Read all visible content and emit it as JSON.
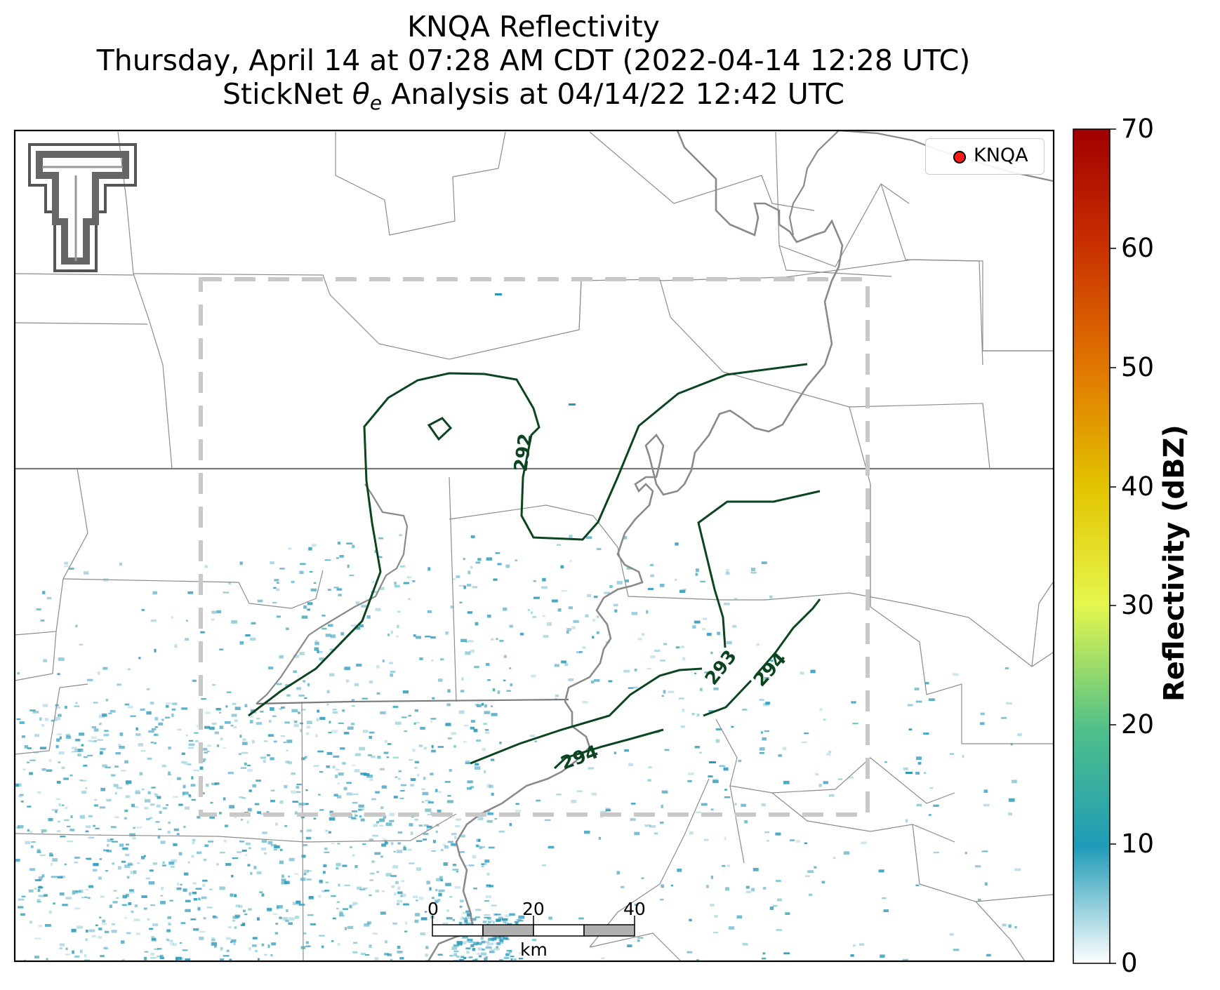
{
  "title": {
    "line1": "KNQA Reflectivity",
    "line2": "Thursday, April 14 at 07:28 AM CDT (2022-04-14 12:28 UTC)",
    "line3_prefix": "StickNet ",
    "line3_symbol": "θ",
    "line3_subscript": "e",
    "line3_suffix": " Analysis at 04/14/22 12:42 UTC"
  },
  "legend": {
    "label": "KNQA",
    "marker_color": "#ff1a1a"
  },
  "colorbar": {
    "label": "Reflectivity (dBZ)",
    "ticks": [
      "0",
      "10",
      "20",
      "30",
      "40",
      "50",
      "60",
      "70"
    ],
    "colors": [
      "#ffffff",
      "#1f9bb7",
      "#4fbf8a",
      "#e5f74d",
      "#e3c400",
      "#e07800",
      "#c83000",
      "#a00000"
    ]
  },
  "contours": {
    "color": "#0a4520",
    "labels": [
      "292",
      "293",
      "294",
      "294"
    ]
  },
  "scale_bar": {
    "labels": [
      "0",
      "20",
      "40"
    ],
    "unit": "km"
  },
  "colors": {
    "county_lines": "#8c8c8c",
    "state_line": "#777777",
    "river": "#8a8a8a",
    "analysis_box": "#c8c8c8",
    "radar_echo": "#2a98b8"
  }
}
